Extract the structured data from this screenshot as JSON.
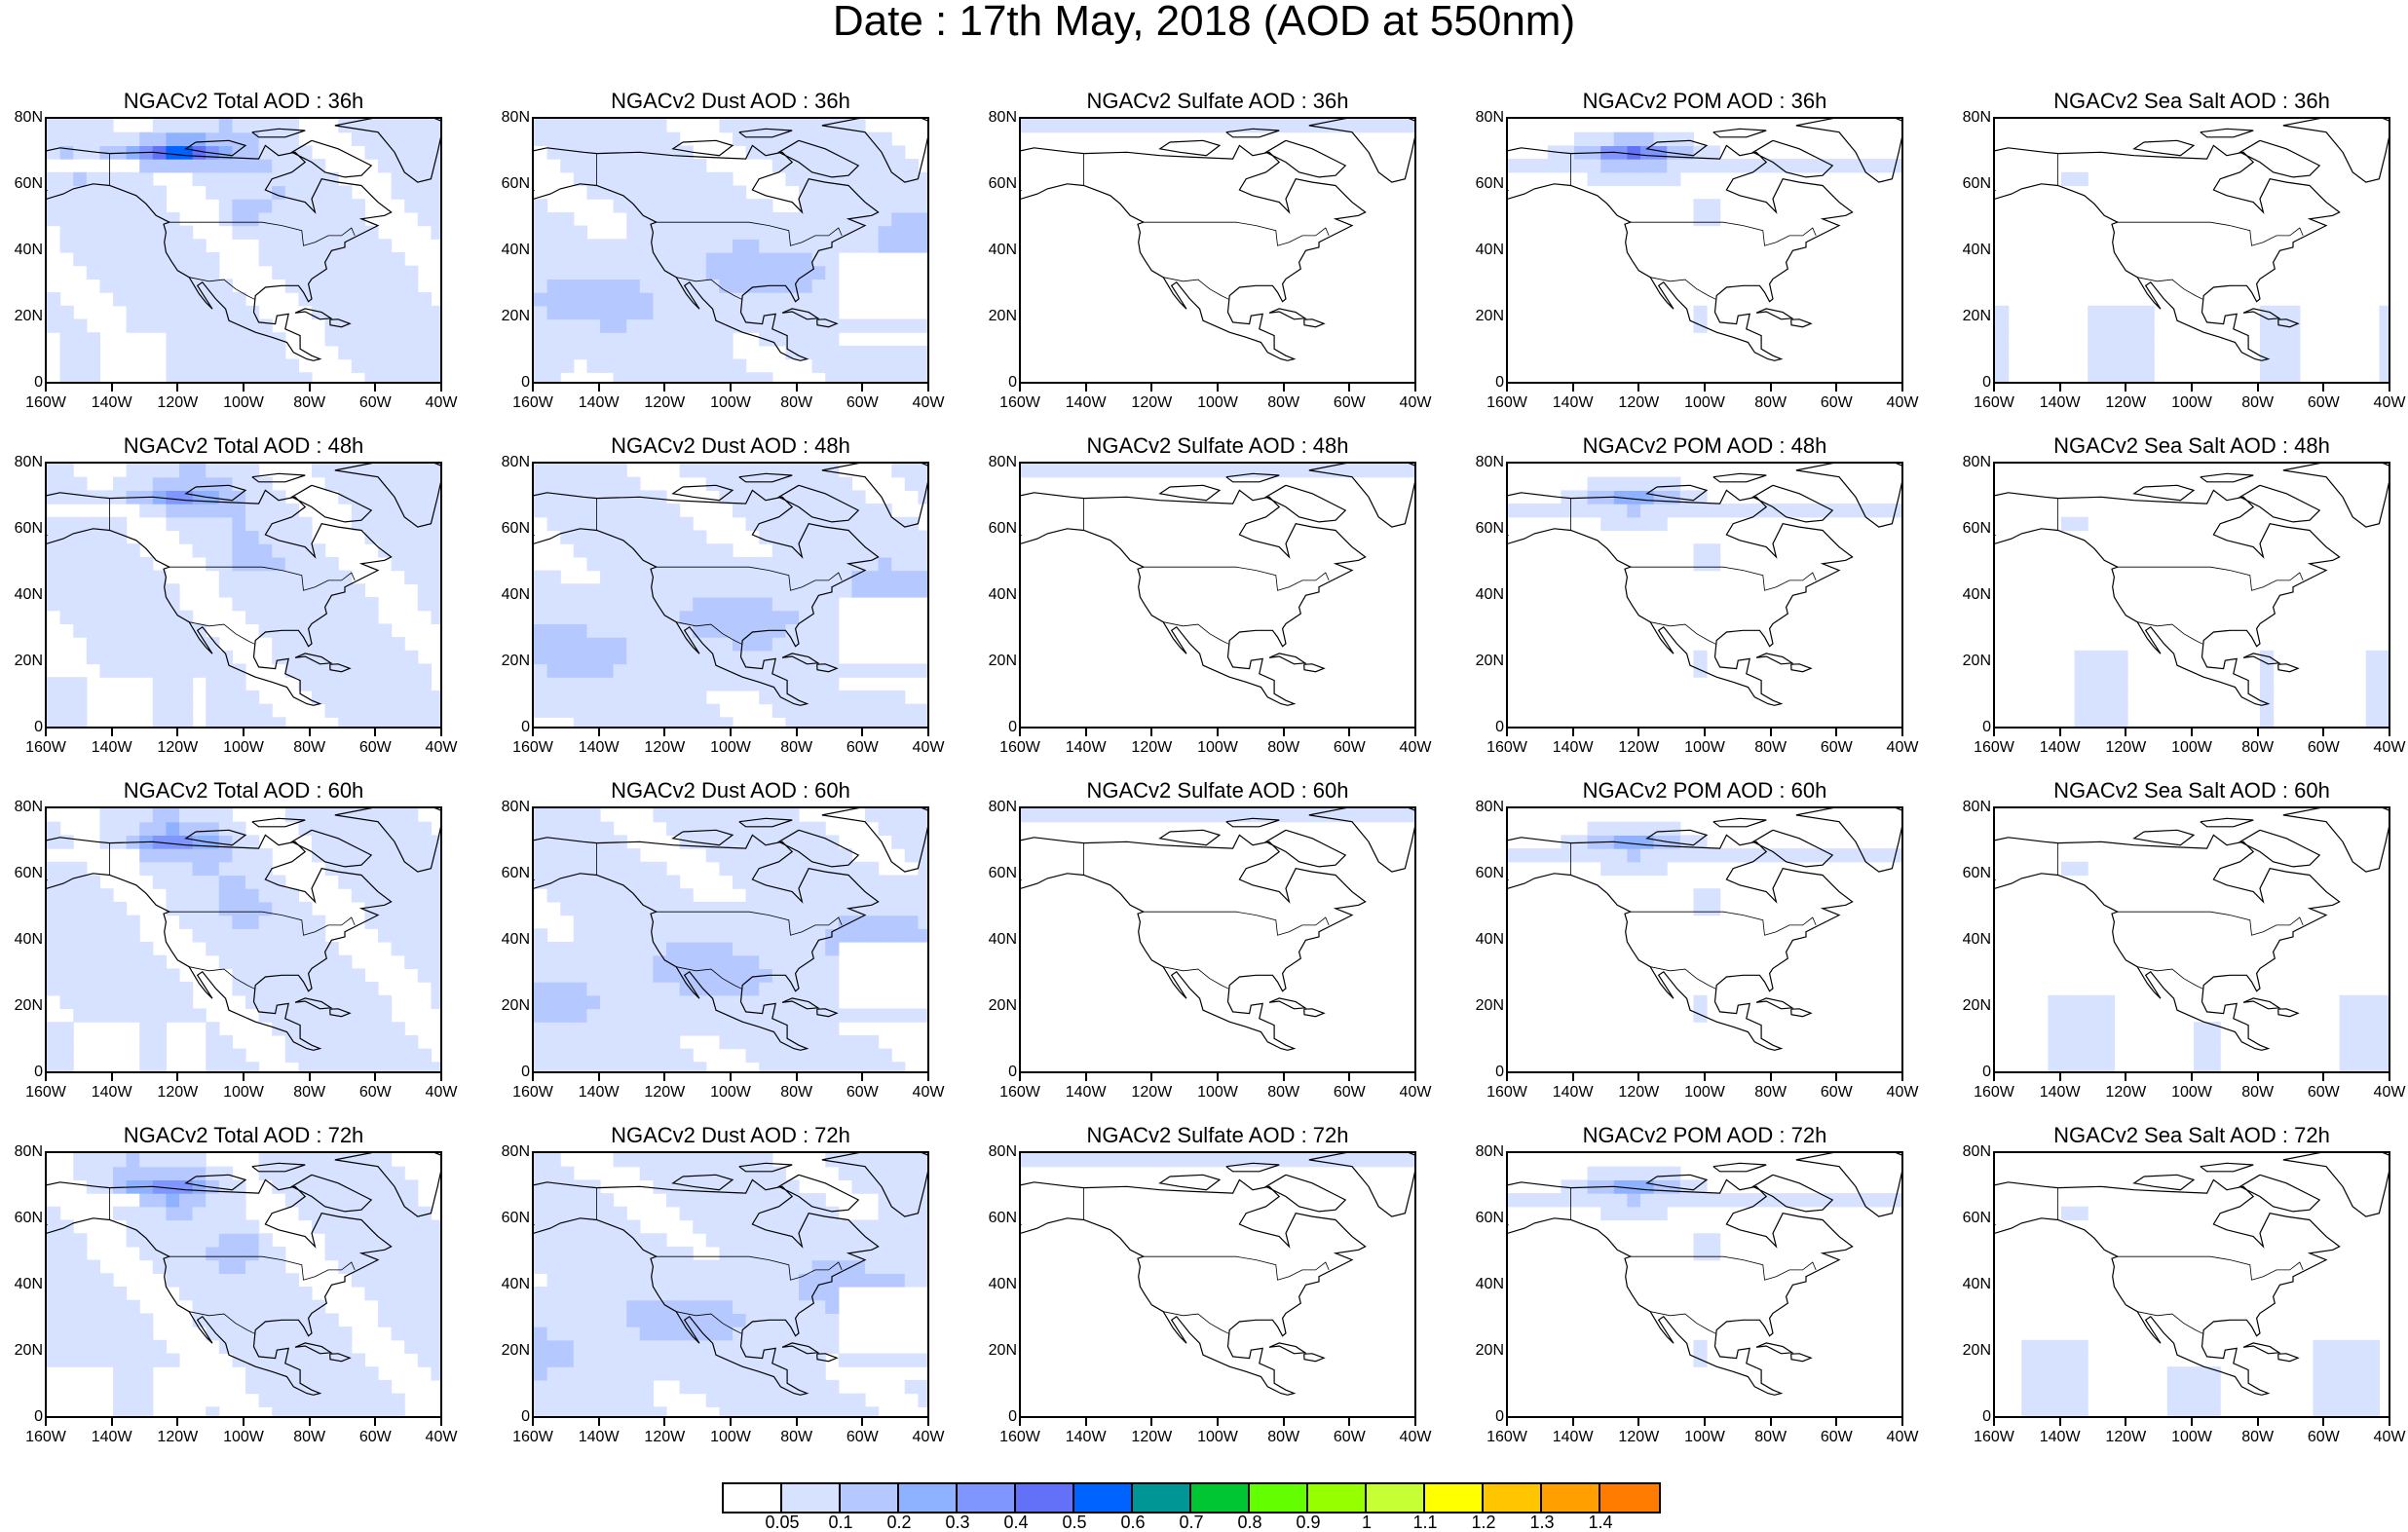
{
  "title": "Date : 17th May, 2018 (AOD at 550nm)",
  "x_tick_labels": [
    "160W",
    "140W",
    "120W",
    "100W",
    "80W",
    "60W",
    "40W"
  ],
  "y_tick_labels": [
    "80N",
    "60N",
    "40N",
    "20N",
    "0"
  ],
  "forecast_hours": [
    "36h",
    "48h",
    "60h",
    "72h"
  ],
  "panels": [
    [
      "NGACv2 Total AOD : 36h",
      "NGACv2 Dust AOD : 36h",
      "NGACv2 Sulfate AOD : 36h",
      "NGACv2 POM AOD : 36h",
      "NGACv2 Sea Salt AOD : 36h"
    ],
    [
      "NGACv2 Total AOD : 48h",
      "NGACv2 Dust AOD : 48h",
      "NGACv2 Sulfate AOD : 48h",
      "NGACv2 POM AOD : 48h",
      "NGACv2 Sea Salt AOD : 48h"
    ],
    [
      "NGACv2 Total AOD : 60h",
      "NGACv2 Dust AOD : 60h",
      "NGACv2 Sulfate AOD : 60h",
      "NGACv2 POM AOD : 60h",
      "NGACv2 Sea Salt AOD : 60h"
    ],
    [
      "NGACv2 Total AOD : 72h",
      "NGACv2 Dust AOD : 72h",
      "NGACv2 Sulfate AOD : 72h",
      "NGACv2 POM AOD : 72h",
      "NGACv2 Sea Salt  AOD : 72h"
    ]
  ],
  "map_extent": {
    "lon_range": [
      "160W",
      "40W"
    ],
    "lat_range": [
      "0",
      "80N"
    ]
  },
  "colorbar": {
    "labels": [
      "0.05",
      "0.1",
      "0.2",
      "0.3",
      "0.4",
      "0.5",
      "0.6",
      "0.7",
      "0.8",
      "0.9",
      "1",
      "1.1",
      "1.2",
      "1.3",
      "1.4"
    ],
    "colors": [
      "#ffffff",
      "#d6e2ff",
      "#b5c8ff",
      "#8eb2ff",
      "#7f96ff",
      "#6370f8",
      "#0063ff",
      "#009696",
      "#00c633",
      "#63ff00",
      "#96ff00",
      "#c6ff33",
      "#ffff00",
      "#ffc600",
      "#ffa000",
      "#ff7c00",
      "#ff1900"
    ]
  }
}
